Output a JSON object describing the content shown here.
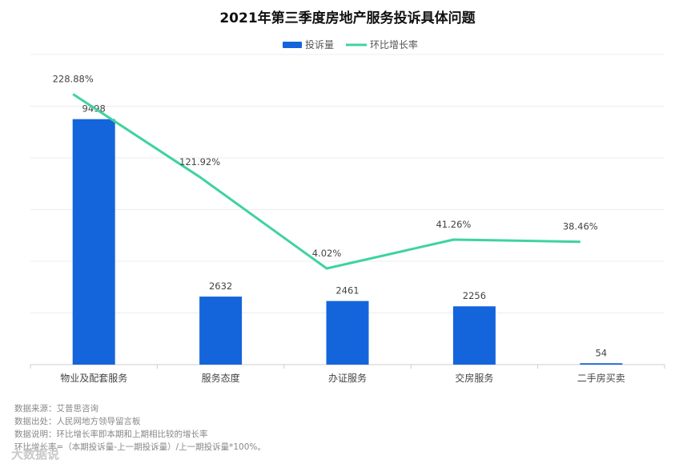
{
  "chart_data": {
    "type": "bar+line",
    "title": "2021年第三季度房地产服务投诉具体问题",
    "categories": [
      "物业及配套服务",
      "服务态度",
      "办证服务",
      "交房服务",
      "二手房买卖"
    ],
    "series": [
      {
        "name": "投诉量",
        "type": "bar",
        "color": "#1464dc",
        "values": [
          9498,
          2632,
          2461,
          2256,
          54
        ],
        "labels": [
          "9498",
          "2632",
          "2461",
          "2256",
          "54"
        ]
      },
      {
        "name": "环比增长率",
        "type": "line",
        "color": "#3fd39f",
        "values": [
          228.88,
          121.92,
          4.02,
          41.26,
          38.46
        ],
        "labels": [
          "228.88%",
          "121.92%",
          "4.02%",
          "41.26%",
          "38.46%"
        ]
      }
    ],
    "ylim_bar": [
      0,
      12000
    ],
    "ylim_line": [
      -120,
      280
    ],
    "grid": true,
    "legend": "top-center"
  },
  "footer": {
    "source": "数据来源：艾普思咨询",
    "origin": "数据出处：人民网地方领导留言板",
    "note": "数据说明：环比增长率即本期和上期相比较的增长率",
    "formula": "环比增长率=（本期投诉量-上一期投诉量）/上一期投诉量*100%。"
  },
  "watermark": "大数据说"
}
